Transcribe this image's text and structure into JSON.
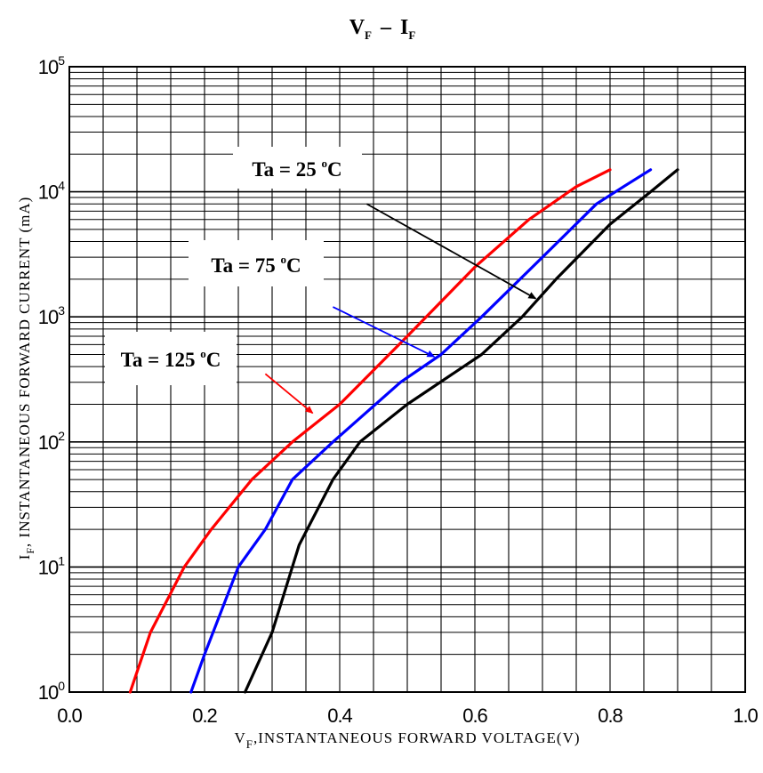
{
  "chart_data": {
    "type": "line",
    "title": {
      "main_v": "V",
      "sub_v": "F",
      "dash": "–",
      "main_i": "I",
      "sub_i": "F"
    },
    "xlabel": {
      "main": "V",
      "sub": "F",
      "rest": ",INSTANTANEOUS  FORWARD  VOLTAGE(V)"
    },
    "ylabel": {
      "main": "I",
      "sub": "F",
      "rest": ", INSTANTANEOUS FORWARD CURRENT (mA)"
    },
    "x_scale": "linear",
    "y_scale": "log",
    "xlim": [
      0.0,
      1.0
    ],
    "ylim": [
      1,
      100000
    ],
    "x_ticks": [
      "0.0",
      "0.2",
      "0.4",
      "0.6",
      "0.8",
      "1.0"
    ],
    "x_tick_values": [
      0.0,
      0.2,
      0.4,
      0.6,
      0.8,
      1.0
    ],
    "y_ticks": [
      {
        "base": "10",
        "exp": "0",
        "value": 1
      },
      {
        "base": "10",
        "exp": "1",
        "value": 10
      },
      {
        "base": "10",
        "exp": "2",
        "value": 100
      },
      {
        "base": "10",
        "exp": "3",
        "value": 1000
      },
      {
        "base": "10",
        "exp": "4",
        "value": 10000
      },
      {
        "base": "10",
        "exp": "5",
        "value": 100000
      }
    ],
    "grid": true,
    "series": [
      {
        "name": "Ta = 125 °C",
        "color": "#ff0000",
        "x": [
          0.09,
          0.12,
          0.17,
          0.21,
          0.27,
          0.33,
          0.4,
          0.5,
          0.6,
          0.68,
          0.75,
          0.8
        ],
        "y": [
          1,
          3,
          10,
          20,
          50,
          100,
          200,
          700,
          2500,
          6000,
          11000,
          15000
        ]
      },
      {
        "name": "Ta = 75 °C",
        "color": "#0000ff",
        "x": [
          0.18,
          0.2,
          0.25,
          0.29,
          0.33,
          0.39,
          0.49,
          0.55,
          0.61,
          0.7,
          0.78,
          0.82,
          0.86
        ],
        "y": [
          1,
          2,
          10,
          20,
          50,
          100,
          300,
          500,
          1000,
          3000,
          8000,
          11000,
          15000
        ]
      },
      {
        "name": "Ta = 25 °C",
        "color": "#000000",
        "x": [
          0.26,
          0.3,
          0.34,
          0.39,
          0.43,
          0.5,
          0.61,
          0.67,
          0.72,
          0.8,
          0.86,
          0.9
        ],
        "y": [
          1,
          3,
          15,
          50,
          100,
          200,
          500,
          1000,
          2000,
          5500,
          10000,
          15000
        ]
      }
    ],
    "annotations": [
      {
        "main": "Ta = 25 ",
        "sup": "o",
        "unit": "C",
        "color": "#000000",
        "arrow_from": [
          0.44,
          8000
        ],
        "arrow_to": [
          0.69,
          1400
        ]
      },
      {
        "main": "Ta = 75 ",
        "sup": "o",
        "unit": "C",
        "color": "#0000ff",
        "arrow_from": [
          0.39,
          1200
        ],
        "arrow_to": [
          0.54,
          480
        ]
      },
      {
        "main": "Ta = 125 ",
        "sup": "o",
        "unit": "C",
        "color": "#ff0000",
        "arrow_from": [
          0.29,
          350
        ],
        "arrow_to": [
          0.36,
          170
        ]
      }
    ]
  }
}
